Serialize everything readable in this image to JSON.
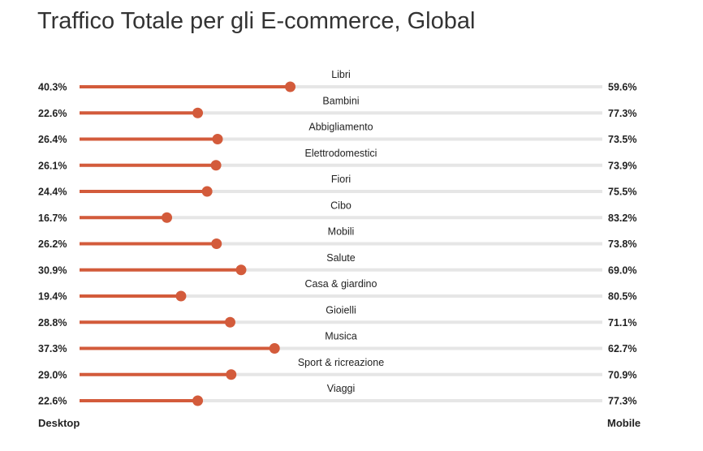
{
  "chart_data": {
    "type": "bar",
    "title": "Traffico Totale per gli E-commerce, Global",
    "categories": [
      "Libri",
      "Bambini",
      "Abbigliamento",
      "Elettrodomestici",
      "Fiori",
      "Cibo",
      "Mobili",
      "Salute",
      "Casa & giardino",
      "Gioielli",
      "Musica",
      "Sport & ricreazione",
      "Viaggi"
    ],
    "series": [
      {
        "name": "Desktop",
        "values": [
          40.3,
          22.6,
          26.4,
          26.1,
          24.4,
          16.7,
          26.2,
          30.9,
          19.4,
          28.8,
          37.3,
          29.0,
          22.6
        ]
      },
      {
        "name": "Mobile",
        "values": [
          59.6,
          77.3,
          73.5,
          73.9,
          75.5,
          83.2,
          73.8,
          69.0,
          80.5,
          71.1,
          62.7,
          70.9,
          77.3
        ]
      }
    ],
    "value_labels_desktop": [
      "40.3%",
      "22.6%",
      "26.4%",
      "26.1%",
      "24.4%",
      "16.7%",
      "26.2%",
      "30.9%",
      "19.4%",
      "28.8%",
      "37.3%",
      "29.0%",
      "22.6%"
    ],
    "value_labels_mobile": [
      "59.6%",
      "77.3%",
      "73.5%",
      "73.9%",
      "75.5%",
      "83.2%",
      "73.8%",
      "69.0%",
      "80.5%",
      "71.1%",
      "62.7%",
      "70.9%",
      "77.3%"
    ],
    "footer_left": "Desktop",
    "footer_right": "Mobile",
    "colors": {
      "desktop": "#d35b3b",
      "track": "#e6e6e6"
    }
  }
}
